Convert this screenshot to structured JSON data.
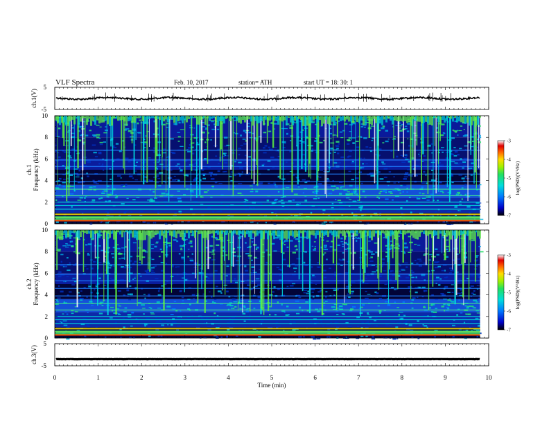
{
  "header": {
    "title": "VLF  Spectra",
    "date": "Feb. 10, 2017",
    "station": "station= ATH",
    "start": "start  UT  =   18: 30: 1"
  },
  "chart_data": [
    {
      "type": "line",
      "id": "ch1_waveform",
      "ylabel": "ch.1(V)",
      "ylim": [
        -5,
        5
      ],
      "yticks": [
        "5",
        "-5"
      ],
      "xlim": [
        0,
        10
      ],
      "series": [
        {
          "baseline": 0,
          "trace_end_min": 9.8,
          "color": "#000000"
        }
      ]
    },
    {
      "type": "heatmap",
      "id": "ch1_spectrogram",
      "ylabel": "ch.1\nFrequency (kHz)",
      "ylabel_lines": [
        "ch.1",
        "Frequency (kHz)"
      ],
      "ylim": [
        0,
        10
      ],
      "yticks": [
        "0",
        "2",
        "4",
        "6",
        "8",
        "10"
      ],
      "xlim": [
        0,
        10
      ],
      "data_end_min": 9.8,
      "colorbar": {
        "label": "log(PSD)(V²/Hz)",
        "ticks": [
          "-3",
          "-4",
          "-5",
          "-6",
          "-7"
        ],
        "range": [
          -7,
          -3
        ],
        "colors": [
          "#000000",
          "#0000c8",
          "#0078ff",
          "#00dcdc",
          "#22e060",
          "#a0f000",
          "#ffdc00",
          "#ff6000",
          "#e00000",
          "#ffffff"
        ]
      }
    },
    {
      "type": "heatmap",
      "id": "ch2_spectrogram",
      "ylabel": "ch.2\nFrequency (kHz)",
      "ylabel_lines": [
        "ch.2",
        "Frequency (kHz)"
      ],
      "ylim": [
        0,
        10
      ],
      "yticks": [
        "0",
        "2",
        "4",
        "6",
        "8",
        "10"
      ],
      "xlim": [
        0,
        10
      ],
      "data_end_min": 9.8,
      "colorbar": {
        "label": "log(PSD)(V²/Hz)",
        "ticks": [
          "-3",
          "-4",
          "-5",
          "-6",
          "-7"
        ],
        "range": [
          -7,
          -3
        ],
        "colors": [
          "#000000",
          "#0000c8",
          "#0078ff",
          "#00dcdc",
          "#22e060",
          "#a0f000",
          "#ffdc00",
          "#ff6000",
          "#e00000",
          "#ffffff"
        ]
      }
    },
    {
      "type": "line",
      "id": "ch3_waveform",
      "ylabel": "ch.3(V)",
      "ylim": [
        -5,
        5
      ],
      "yticks": [
        "5",
        "-5"
      ],
      "xlim": [
        0,
        10
      ],
      "xlabel": "Time  (min)",
      "xticks": [
        "0",
        "1",
        "2",
        "3",
        "4",
        "5",
        "6",
        "7",
        "8",
        "9",
        "10"
      ],
      "series": [
        {
          "baseline": -2,
          "trace_end_min": 9.8,
          "color": "#000000"
        }
      ]
    }
  ]
}
